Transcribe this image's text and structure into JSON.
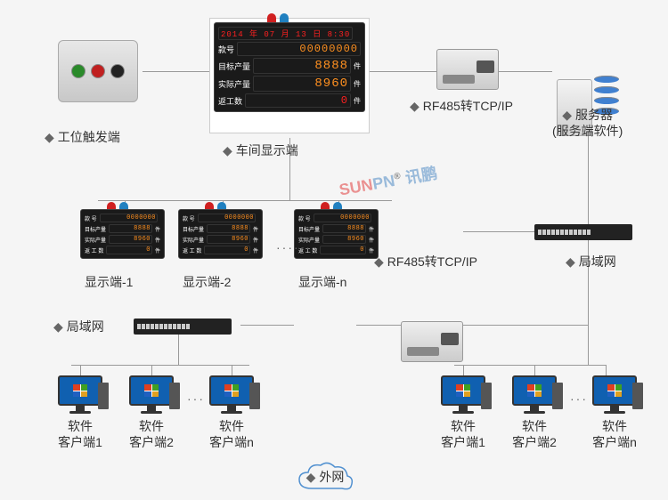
{
  "type": "network-diagram",
  "nodes": {
    "trigger": {
      "label": "工位触发端"
    },
    "workshop_display": {
      "label": "车间显示端",
      "rows": [
        {
          "type": "date",
          "value": "2014 年 07 月 13 日 8:30",
          "color": "#ff2020"
        },
        {
          "label": "款号",
          "value": "00000000",
          "color": "#ff9020",
          "unit": ""
        },
        {
          "label": "目标产量",
          "value": "8888",
          "color": "#ff9020",
          "unit": "件"
        },
        {
          "label": "实际产量",
          "value": "8960",
          "color": "#ff9020",
          "unit": "件"
        },
        {
          "label": "返工数",
          "value": "0",
          "color": "#ff2020",
          "unit": "件"
        }
      ]
    },
    "converter1": {
      "label": "RF485转TCP/IP"
    },
    "server": {
      "label_line1": "服务器",
      "label_line2": "(服务端软件)"
    },
    "small_displays": [
      {
        "label": "显示端-1"
      },
      {
        "label": "显示端-2"
      },
      {
        "label": "显示端-n"
      }
    ],
    "small_display_rows": [
      {
        "label": "款 号",
        "value": "0000000",
        "unit": ""
      },
      {
        "label": "目标产量",
        "value": "8888",
        "unit": "件"
      },
      {
        "label": "实际产量",
        "value": "8960",
        "unit": "件"
      },
      {
        "label": "返 工 数",
        "value": "0",
        "unit": "件"
      }
    ],
    "converter2": {
      "label": "RF485转TCP/IP"
    },
    "switch_right": {
      "label": "局域网"
    },
    "switch_left": {
      "label": "局域网"
    },
    "cloud": {
      "label": "外网"
    },
    "clients_left": [
      {
        "l1": "软件",
        "l2": "客户端1"
      },
      {
        "l1": "软件",
        "l2": "客户端2"
      },
      {
        "l1": "软件",
        "l2": "客户端n"
      }
    ],
    "clients_right": [
      {
        "l1": "软件",
        "l2": "客户端1"
      },
      {
        "l1": "软件",
        "l2": "客户端2"
      },
      {
        "l1": "软件",
        "l2": "客户端n"
      }
    ]
  },
  "watermark": {
    "sun": "SUN",
    "pn": "PN",
    "reg": "®",
    "cn": "讯鹏"
  },
  "colors": {
    "bg": "#f5f5f5",
    "line": "#999999",
    "text": "#333333",
    "led_bg": "#1a1a1a",
    "led_amber": "#ff9020",
    "led_red": "#ff2020"
  }
}
